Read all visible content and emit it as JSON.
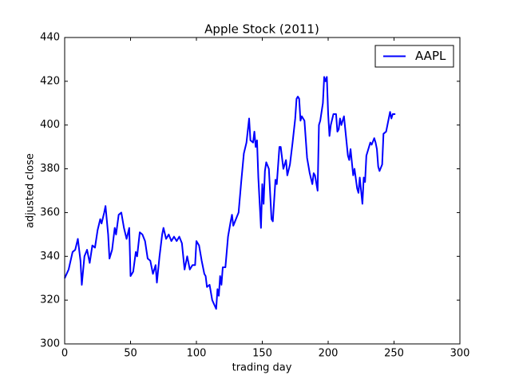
{
  "chart_data": {
    "type": "line",
    "title": "Apple Stock (2011)",
    "xlabel": "trading day",
    "ylabel": "adjusted close",
    "xlim": [
      0,
      300
    ],
    "xticks": [
      0,
      50,
      100,
      150,
      200,
      250,
      300
    ],
    "ylim": [
      300,
      440
    ],
    "yticks": [
      300,
      320,
      340,
      360,
      380,
      400,
      420,
      440
    ],
    "legend": "upper right",
    "grid": false,
    "x": [
      0,
      3,
      6,
      8,
      10,
      12,
      13,
      15,
      17,
      19,
      21,
      23,
      25,
      27,
      28,
      30,
      31,
      33,
      34,
      36,
      38,
      39,
      41,
      43,
      45,
      47,
      49,
      50,
      52,
      54,
      55,
      57,
      59,
      61,
      63,
      65,
      67,
      69,
      70,
      72,
      74,
      75,
      77,
      79,
      81,
      83,
      85,
      87,
      89,
      91,
      93,
      95,
      97,
      99,
      100,
      102,
      104,
      106,
      107,
      108,
      110,
      112,
      115,
      116,
      117,
      118,
      119,
      120,
      122,
      124,
      126,
      127,
      128,
      130,
      132,
      134,
      136,
      138,
      140,
      141,
      143,
      144,
      145,
      146,
      147,
      149,
      150,
      151,
      152,
      153,
      155,
      157,
      158,
      160,
      161,
      163,
      164,
      166,
      168,
      169,
      171,
      173,
      175,
      176,
      177,
      178,
      179,
      180,
      182,
      184,
      186,
      188,
      189,
      190,
      192,
      193,
      194,
      196,
      197,
      198,
      199,
      200,
      201,
      202,
      204,
      206,
      207,
      208,
      209,
      210,
      212,
      215,
      216,
      217,
      219,
      220,
      222,
      223,
      224,
      226,
      227,
      228,
      229,
      231,
      232,
      233,
      235,
      236,
      237,
      238,
      239,
      241,
      242,
      244,
      245,
      247,
      248,
      249,
      251
    ],
    "series": [
      {
        "name": "AAPL",
        "color": "#0000ff",
        "values": [
          330,
          334,
          342,
          343,
          348,
          338,
          327,
          340,
          343,
          337,
          345,
          344,
          352,
          357,
          355,
          360,
          363,
          350,
          339,
          343,
          353,
          350,
          359,
          360,
          353,
          348,
          353,
          331,
          333,
          342,
          340,
          351,
          350,
          347,
          339,
          338,
          332,
          336,
          328,
          340,
          350,
          353,
          348,
          350,
          347,
          349,
          347,
          349,
          346,
          334,
          340,
          334,
          336,
          336,
          347,
          345,
          338,
          332,
          331,
          326,
          327,
          320,
          316,
          325,
          322,
          331,
          327,
          335,
          335,
          349,
          356,
          359,
          354,
          357,
          360,
          374,
          387,
          392,
          403,
          393,
          392,
          397,
          390,
          393,
          376,
          353,
          373,
          364,
          379,
          383,
          380,
          357,
          356,
          375,
          373,
          390,
          390,
          380,
          384,
          377,
          382,
          392,
          403,
          412,
          413,
          412,
          402,
          404,
          402,
          385,
          378,
          373,
          378,
          377,
          370,
          400,
          402,
          410,
          422,
          420,
          422,
          405,
          395,
          400,
          405,
          405,
          397,
          398,
          403,
          400,
          404,
          386,
          384,
          389,
          377,
          380,
          371,
          369,
          376,
          364,
          376,
          374,
          386,
          390,
          392,
          391,
          394,
          392,
          389,
          381,
          379,
          382,
          396,
          397,
          400,
          406,
          403,
          405,
          405
        ]
      }
    ]
  }
}
